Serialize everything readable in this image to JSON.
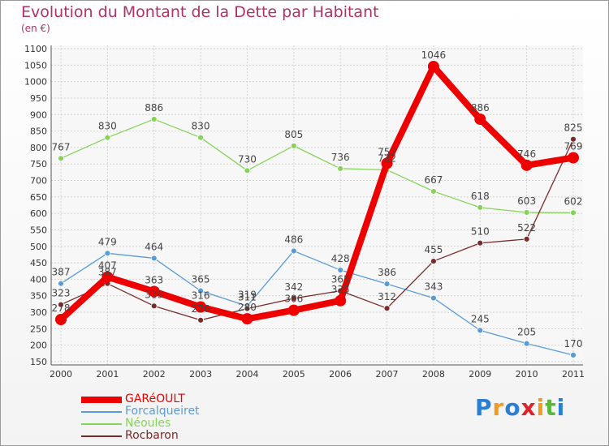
{
  "chart_data": {
    "type": "line",
    "title": "Evolution du Montant de la Dette par Habitant",
    "subtitle": "(en €)",
    "xlabel": "",
    "ylabel": "",
    "categories": [
      "2000",
      "2001",
      "2002",
      "2003",
      "2004",
      "2005",
      "2006",
      "2007",
      "2008",
      "2009",
      "2010",
      "2011"
    ],
    "ylim": [
      150,
      1100
    ],
    "yticks": [
      150,
      200,
      250,
      300,
      350,
      400,
      450,
      500,
      550,
      600,
      650,
      700,
      750,
      800,
      850,
      900,
      950,
      1000,
      1050,
      1100
    ],
    "grid": true,
    "legend_position": "bottom-left",
    "series": [
      {
        "name": "GARéOULT",
        "color": "#ee0000",
        "values": [
          278,
          407,
          363,
          316,
          280,
          306,
          335,
          752,
          1046,
          886,
          746,
          769
        ],
        "value_labels": [
          "278",
          "407",
          "363",
          "316",
          "280",
          "306",
          "335",
          "752",
          "1046",
          "886",
          "746",
          "769"
        ]
      },
      {
        "name": "Forcalqueiret",
        "color": "#5b9bd5",
        "values": [
          387,
          479,
          464,
          365,
          319,
          486,
          428,
          386,
          343,
          245,
          205,
          170
        ],
        "value_labels": [
          "387",
          "479",
          "464",
          "365",
          "319",
          "486",
          "428",
          "386",
          "343",
          "245",
          "205",
          "170"
        ]
      },
      {
        "name": "Néoules",
        "color": "#86d35a",
        "values": [
          767,
          830,
          886,
          830,
          730,
          805,
          736,
          732,
          667,
          618,
          603,
          602
        ],
        "value_labels": [
          "767",
          "830",
          "886",
          "830",
          "730",
          "805",
          "736",
          "732",
          "667",
          "618",
          "603",
          "602"
        ]
      },
      {
        "name": "Rocbaron",
        "color": "#7a2a2a",
        "values": [
          323,
          387,
          319,
          276,
          311,
          342,
          365,
          312,
          455,
          510,
          522,
          825
        ],
        "value_labels": [
          "323",
          "387",
          "319",
          "276",
          "311",
          "342",
          "365",
          "312",
          "455",
          "510",
          "522",
          "825"
        ]
      }
    ]
  },
  "logo": {
    "letters": [
      "P",
      "r",
      "o",
      "x",
      "i",
      "t",
      "i"
    ],
    "colors": [
      "#2a7fd4",
      "#f39a1e",
      "#2a7fd4",
      "#e0232a",
      "#f39a1e",
      "#5bb83d",
      "#2a7fd4"
    ]
  }
}
